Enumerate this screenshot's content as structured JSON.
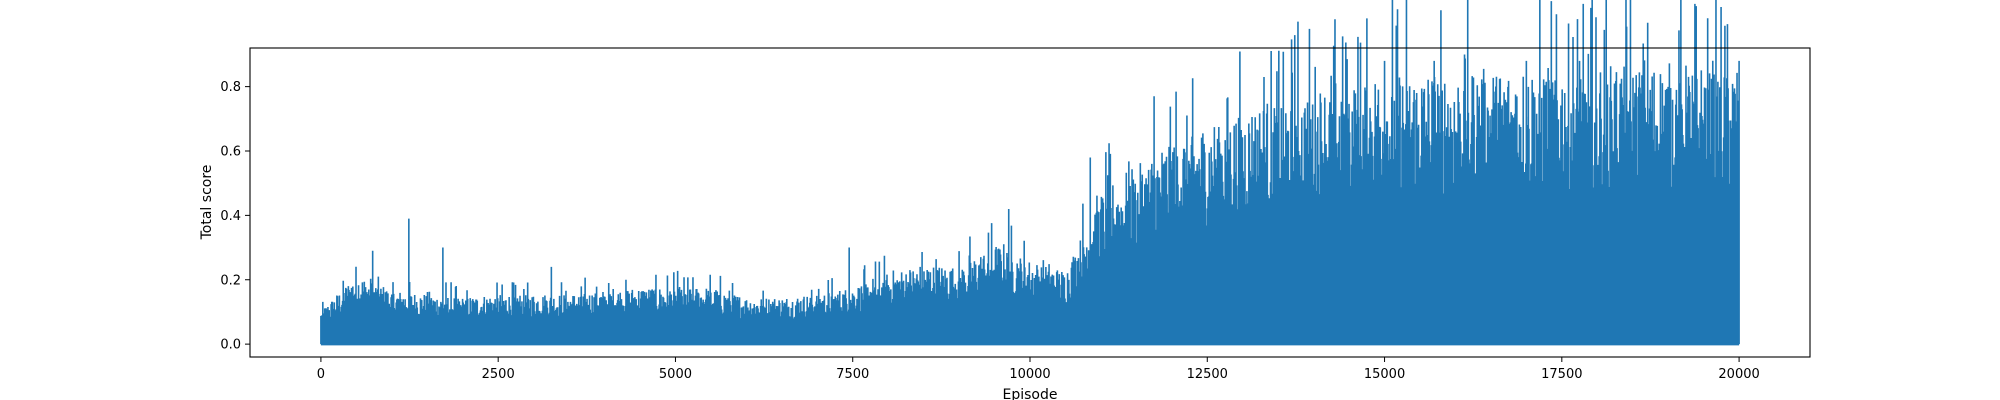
{
  "chart_data": {
    "type": "line",
    "title": "",
    "xlabel": "Episode",
    "ylabel": "Total score",
    "xlim": [
      -1000,
      21000
    ],
    "ylim": [
      -0.04,
      0.92
    ],
    "x_ticks": [
      0,
      2500,
      5000,
      7500,
      10000,
      12500,
      15000,
      17500,
      20000
    ],
    "y_ticks": [
      0.0,
      0.2,
      0.4,
      0.6,
      0.8
    ],
    "x_tick_labels": [
      "0",
      "2500",
      "5000",
      "7500",
      "10000",
      "12500",
      "15000",
      "17500",
      "20000"
    ],
    "y_tick_labels": [
      "0.0",
      "0.2",
      "0.4",
      "0.6",
      "0.8"
    ],
    "grid": false,
    "legend": "none",
    "series": [
      {
        "color": "#1f77b4",
        "x_range": [
          0,
          20000
        ],
        "min_value": 0.0,
        "peak_envelope": {
          "x": [
            0,
            500,
            1000,
            1500,
            2000,
            2500,
            3000,
            3500,
            4000,
            4500,
            5000,
            5500,
            6000,
            6500,
            7000,
            7500,
            8000,
            8500,
            9000,
            9500,
            10000,
            10500,
            10800,
            11000,
            11500,
            12000,
            12500,
            13000,
            13500,
            14000,
            14500,
            15000,
            15500,
            16000,
            16500,
            17000,
            17500,
            18000,
            18500,
            19000,
            19500,
            20000
          ],
          "y": [
            0.1,
            0.21,
            0.16,
            0.15,
            0.14,
            0.15,
            0.15,
            0.15,
            0.16,
            0.17,
            0.17,
            0.17,
            0.14,
            0.14,
            0.15,
            0.17,
            0.21,
            0.24,
            0.23,
            0.3,
            0.25,
            0.22,
            0.36,
            0.45,
            0.52,
            0.62,
            0.66,
            0.7,
            0.74,
            0.77,
            0.79,
            0.82,
            0.82,
            0.82,
            0.83,
            0.83,
            0.84,
            0.84,
            0.84,
            0.84,
            0.84,
            0.84
          ]
        },
        "spikes": [
          {
            "x": 730,
            "y": 0.29
          },
          {
            "x": 1240,
            "y": 0.39
          },
          {
            "x": 1720,
            "y": 0.3
          },
          {
            "x": 3250,
            "y": 0.24
          },
          {
            "x": 7450,
            "y": 0.3
          },
          {
            "x": 9700,
            "y": 0.42
          },
          {
            "x": 10850,
            "y": 0.58
          },
          {
            "x": 11750,
            "y": 0.77
          },
          {
            "x": 13300,
            "y": 0.83
          },
          {
            "x": 15000,
            "y": 0.88
          },
          {
            "x": 15700,
            "y": 0.88
          },
          {
            "x": 17000,
            "y": 0.88
          },
          {
            "x": 17750,
            "y": 0.88
          },
          {
            "x": 20000,
            "y": 0.88
          }
        ]
      }
    ]
  }
}
